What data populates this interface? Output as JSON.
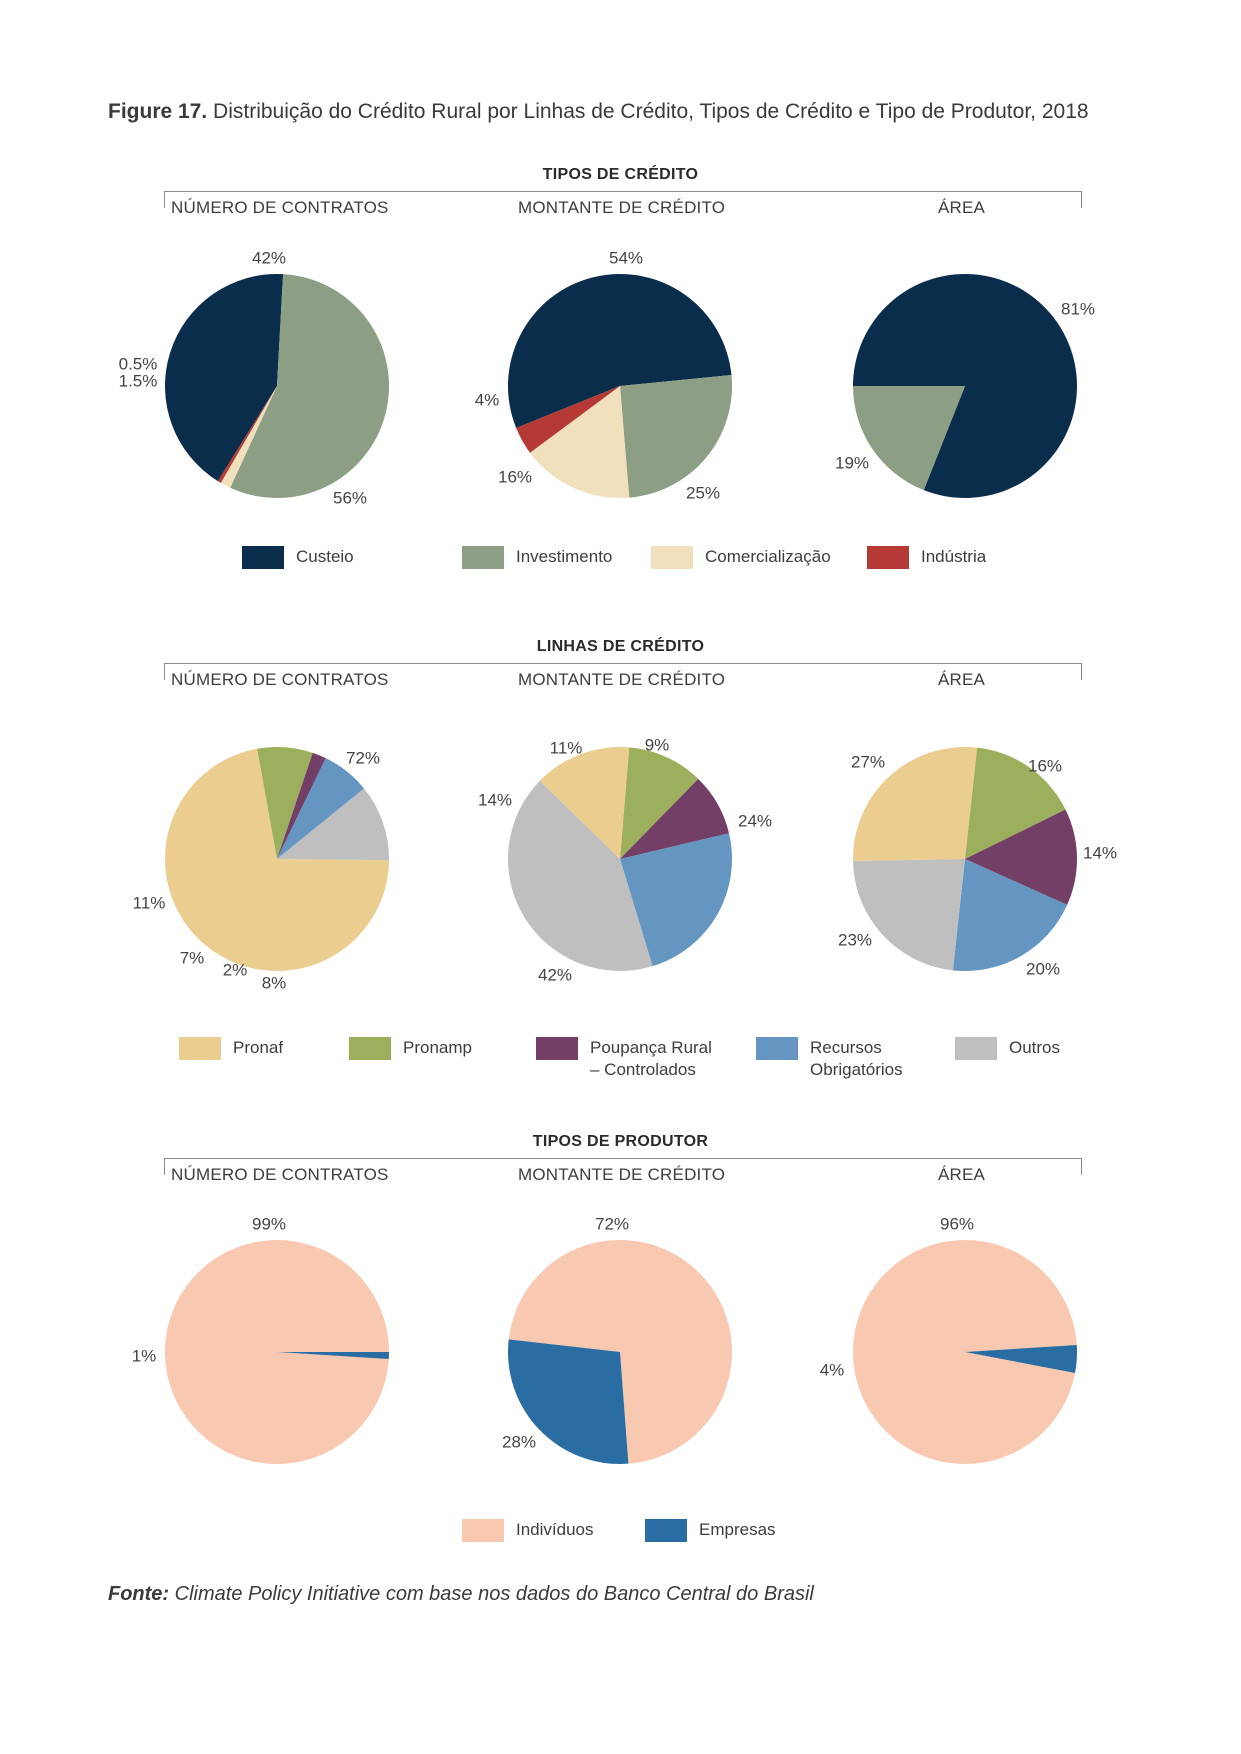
{
  "figure": {
    "label": "Figure 17.",
    "title": "Distribuição do Crédito Rural por Linhas de Crédito, Tipos de Crédito e Tipo de Produtor, 2018"
  },
  "column_headers": [
    "NÚMERO DE CONTRATOS",
    "MONTANTE DE CRÉDITO",
    "ÁREA"
  ],
  "colors": {
    "custeio": "#0b2d4c",
    "investimento": "#8c9e84",
    "comercializacao": "#f0e0bb",
    "industria": "#b53a35",
    "pronaf": "#ebcd8f",
    "pronamp": "#9caf5d",
    "poupanca": "#733f66",
    "recursos": "#6496c1",
    "outros": "#c0bfc0",
    "individuos": "#f9c8b1",
    "empresas": "#2a6da3"
  },
  "sections": [
    {
      "title": "TIPOS DE CRÉDITO",
      "legend": [
        {
          "label": "Custeio",
          "color": "#0b2d4c"
        },
        {
          "label": "Investimento",
          "color": "#8c9e84"
        },
        {
          "label": "Comercialização",
          "color": "#f0e0bb"
        },
        {
          "label": "Indústria",
          "color": "#b53a35"
        }
      ]
    },
    {
      "title": "LINHAS DE CRÉDITO",
      "legend": [
        {
          "label": "Pronaf",
          "color": "#ebcd8f"
        },
        {
          "label": "Pronamp",
          "color": "#9caf5d"
        },
        {
          "label": "Poupança Rural – Controlados",
          "color": "#733f66"
        },
        {
          "label": "Recursos Obrigatórios",
          "color": "#6496c1"
        },
        {
          "label": "Outros",
          "color": "#c0bfc0"
        }
      ]
    },
    {
      "title": "TIPOS DE PRODUTOR",
      "legend": [
        {
          "label": "Indivíduos",
          "color": "#f9c8b1"
        },
        {
          "label": "Empresas",
          "color": "#2a6da3"
        }
      ]
    }
  ],
  "chart_data": [
    {
      "type": "pie",
      "section": "TIPOS DE CRÉDITO",
      "title": "NÚMERO DE CONTRATOS",
      "slices": [
        {
          "category": "Custeio",
          "value": 42,
          "label": "42%",
          "color": "#0b2d4c"
        },
        {
          "category": "Investimento",
          "value": 56,
          "label": "56%",
          "color": "#8c9e84"
        },
        {
          "category": "Comercialização",
          "value": 1.5,
          "label": "1.5%",
          "color": "#f0e0bb"
        },
        {
          "category": "Indústria",
          "value": 0.5,
          "label": "0.5%",
          "color": "#b53a35"
        }
      ]
    },
    {
      "type": "pie",
      "section": "TIPOS DE CRÉDITO",
      "title": "MONTANTE DE CRÉDITO",
      "slices": [
        {
          "category": "Custeio",
          "value": 54,
          "label": "54%",
          "color": "#0b2d4c"
        },
        {
          "category": "Investimento",
          "value": 25,
          "label": "25%",
          "color": "#8c9e84"
        },
        {
          "category": "Comercialização",
          "value": 16,
          "label": "16%",
          "color": "#f0e0bb"
        },
        {
          "category": "Indústria",
          "value": 4,
          "label": "4%",
          "color": "#b53a35"
        }
      ]
    },
    {
      "type": "pie",
      "section": "TIPOS DE CRÉDITO",
      "title": "ÁREA",
      "slices": [
        {
          "category": "Custeio",
          "value": 81,
          "label": "81%",
          "color": "#0b2d4c"
        },
        {
          "category": "Investimento",
          "value": 19,
          "label": "19%",
          "color": "#8c9e84"
        }
      ]
    },
    {
      "type": "pie",
      "section": "LINHAS DE CRÉDITO",
      "title": "NÚMERO DE CONTRATOS",
      "slices": [
        {
          "category": "Pronaf",
          "value": 72,
          "label": "72%",
          "color": "#ebcd8f"
        },
        {
          "category": "Pronamp",
          "value": 8,
          "label": "8%",
          "color": "#9caf5d"
        },
        {
          "category": "Poupança Rural – Controlados",
          "value": 2,
          "label": "2%",
          "color": "#733f66"
        },
        {
          "category": "Recursos Obrigatórios",
          "value": 7,
          "label": "7%",
          "color": "#6496c1"
        },
        {
          "category": "Outros",
          "value": 11,
          "label": "11%",
          "color": "#c0bfc0"
        }
      ]
    },
    {
      "type": "pie",
      "section": "LINHAS DE CRÉDITO",
      "title": "MONTANTE DE CRÉDITO",
      "slices": [
        {
          "category": "Pronamp",
          "value": 11,
          "label": "11%",
          "color": "#9caf5d"
        },
        {
          "category": "Poupança Rural – Controlados",
          "value": 9,
          "label": "9%",
          "color": "#733f66"
        },
        {
          "category": "Recursos Obrigatórios",
          "value": 24,
          "label": "24%",
          "color": "#6496c1"
        },
        {
          "category": "Outros",
          "value": 42,
          "label": "42%",
          "color": "#c0bfc0"
        },
        {
          "category": "Pronaf",
          "value": 14,
          "label": "14%",
          "color": "#ebcd8f"
        }
      ]
    },
    {
      "type": "pie",
      "section": "LINHAS DE CRÉDITO",
      "title": "ÁREA",
      "slices": [
        {
          "category": "Pronamp",
          "value": 16,
          "label": "16%",
          "color": "#9caf5d"
        },
        {
          "category": "Poupança Rural – Controlados",
          "value": 14,
          "label": "14%",
          "color": "#733f66"
        },
        {
          "category": "Recursos Obrigatórios",
          "value": 20,
          "label": "20%",
          "color": "#6496c1"
        },
        {
          "category": "Outros",
          "value": 23,
          "label": "23%",
          "color": "#c0bfc0"
        },
        {
          "category": "Pronaf",
          "value": 27,
          "label": "27%",
          "color": "#ebcd8f"
        }
      ]
    },
    {
      "type": "pie",
      "section": "TIPOS DE PRODUTOR",
      "title": "NÚMERO DE CONTRATOS",
      "slices": [
        {
          "category": "Indivíduos",
          "value": 99,
          "label": "99%",
          "color": "#f9c8b1"
        },
        {
          "category": "Empresas",
          "value": 1,
          "label": "1%",
          "color": "#2a6da3"
        }
      ]
    },
    {
      "type": "pie",
      "section": "TIPOS DE PRODUTOR",
      "title": "MONTANTE DE CRÉDITO",
      "slices": [
        {
          "category": "Indivíduos",
          "value": 72,
          "label": "72%",
          "color": "#f9c8b1"
        },
        {
          "category": "Empresas",
          "value": 28,
          "label": "28%",
          "color": "#2a6da3"
        }
      ]
    },
    {
      "type": "pie",
      "section": "TIPOS DE PRODUTOR",
      "title": "ÁREA",
      "slices": [
        {
          "category": "Indivíduos",
          "value": 96,
          "label": "96%",
          "color": "#f9c8b1"
        },
        {
          "category": "Empresas",
          "value": 4,
          "label": "4%",
          "color": "#2a6da3"
        }
      ]
    }
  ],
  "source": {
    "label": "Fonte:",
    "text": "Climate Policy Initiative com base nos dados do Banco Central do Brasil"
  }
}
